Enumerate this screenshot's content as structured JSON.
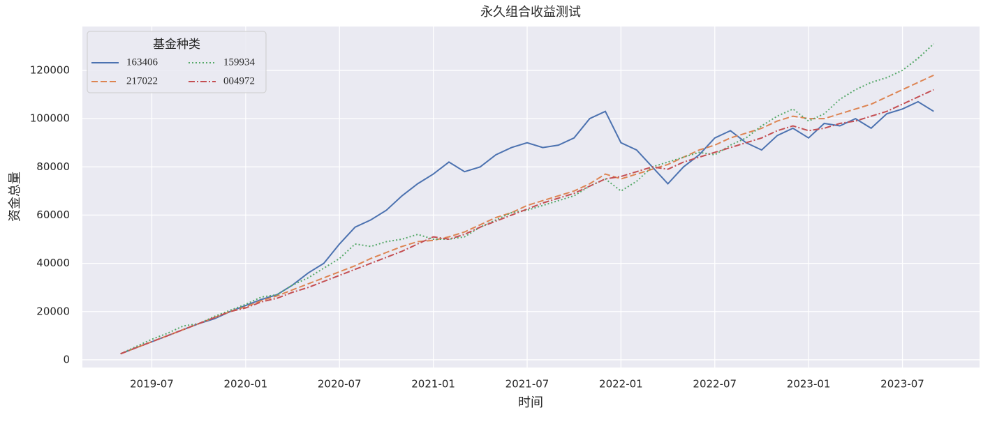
{
  "chart_data": {
    "type": "line",
    "title": "永久组合收益测试",
    "x_label": "时间",
    "y_label": "资金总量",
    "x": [
      "2019-05",
      "2019-06",
      "2019-07",
      "2019-08",
      "2019-09",
      "2019-10",
      "2019-11",
      "2019-12",
      "2020-01",
      "2020-02",
      "2020-03",
      "2020-04",
      "2020-05",
      "2020-06",
      "2020-07",
      "2020-08",
      "2020-09",
      "2020-10",
      "2020-11",
      "2020-12",
      "2021-01",
      "2021-02",
      "2021-03",
      "2021-04",
      "2021-05",
      "2021-06",
      "2021-07",
      "2021-08",
      "2021-09",
      "2021-10",
      "2021-11",
      "2021-12",
      "2022-01",
      "2022-02",
      "2022-03",
      "2022-04",
      "2022-05",
      "2022-06",
      "2022-07",
      "2022-08",
      "2022-09",
      "2022-10",
      "2022-11",
      "2022-12",
      "2023-01",
      "2023-02",
      "2023-03",
      "2023-04",
      "2023-05",
      "2023-06",
      "2023-07",
      "2023-08",
      "2023-09"
    ],
    "series": [
      {
        "name": "163406",
        "color": "#4c72b0",
        "linestyle": "solid",
        "values": [
          2500,
          5000,
          7500,
          10000,
          12500,
          15000,
          17000,
          20000,
          22500,
          25000,
          27000,
          31000,
          36000,
          40000,
          48000,
          55000,
          58000,
          62000,
          68000,
          73000,
          77000,
          82000,
          78000,
          80000,
          85000,
          88000,
          90000,
          88000,
          89000,
          92000,
          100000,
          103000,
          90000,
          87000,
          80000,
          73000,
          80000,
          85000,
          92000,
          95000,
          90000,
          87000,
          93000,
          96000,
          92000,
          98000,
          97000,
          100000,
          96000,
          102000,
          104000,
          107000,
          103000
        ]
      },
      {
        "name": "217022",
        "color": "#dd8452",
        "linestyle": "dashed",
        "values": [
          2500,
          5000,
          7500,
          10000,
          12500,
          15000,
          17500,
          20000,
          22000,
          24500,
          26500,
          29000,
          31500,
          34000,
          36500,
          39000,
          42000,
          44500,
          47000,
          49000,
          49500,
          51000,
          53000,
          56000,
          59000,
          61000,
          64000,
          66000,
          68000,
          70000,
          73000,
          77000,
          75000,
          77000,
          79000,
          81000,
          84000,
          87000,
          89000,
          92000,
          94000,
          96000,
          99000,
          101000,
          100000,
          100000,
          102000,
          104000,
          106000,
          109000,
          112000,
          115000,
          118000
        ]
      },
      {
        "name": "159934",
        "color": "#55a868",
        "linestyle": "dotted",
        "values": [
          2500,
          5500,
          8500,
          11000,
          14000,
          15000,
          18000,
          20500,
          23000,
          26000,
          27000,
          31000,
          34000,
          38000,
          42000,
          48000,
          47000,
          49000,
          50000,
          52000,
          50000,
          50000,
          51000,
          55000,
          58000,
          61000,
          62000,
          64000,
          66000,
          68000,
          72000,
          75000,
          70000,
          74000,
          80000,
          82000,
          84000,
          86000,
          85000,
          89000,
          92000,
          97000,
          101000,
          104000,
          99000,
          102000,
          108000,
          112000,
          115000,
          117000,
          120000,
          125000,
          131000
        ]
      },
      {
        "name": "004972",
        "color": "#c44e52",
        "linestyle": "dashdot",
        "values": [
          2500,
          5000,
          7500,
          10000,
          12500,
          15000,
          17500,
          20000,
          21500,
          24000,
          25500,
          28000,
          30000,
          32500,
          35000,
          37500,
          40000,
          42500,
          45000,
          48000,
          51000,
          50000,
          52000,
          55000,
          57500,
          60000,
          62500,
          65000,
          67000,
          69000,
          72000,
          75000,
          76000,
          78000,
          80000,
          79000,
          82000,
          84000,
          86000,
          88000,
          90000,
          92000,
          95000,
          97000,
          95000,
          96000,
          98000,
          99000,
          101000,
          103000,
          106000,
          109000,
          112000
        ]
      }
    ],
    "xlim": [
      "2019-02",
      "2023-12"
    ],
    "xticks": [
      "2019-07",
      "2020-01",
      "2020-07",
      "2021-01",
      "2021-07",
      "2022-01",
      "2022-07",
      "2023-01",
      "2023-07"
    ],
    "ylim": [
      -3200,
      138200
    ],
    "yticks": [
      0,
      20000,
      40000,
      60000,
      80000,
      100000,
      120000
    ],
    "grid": true,
    "legend": {
      "title": "基金种类",
      "loc": "upper left",
      "ncol": 2
    }
  }
}
